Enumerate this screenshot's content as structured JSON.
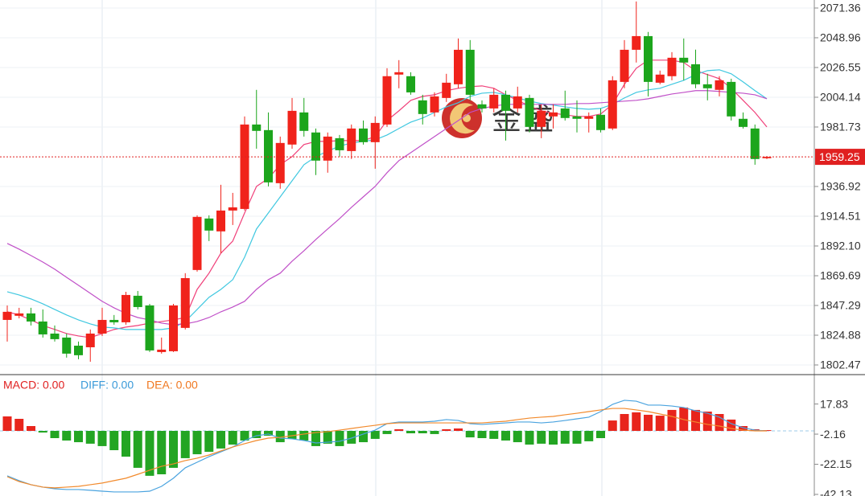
{
  "chart_data": [
    {
      "type": "candlestick",
      "ylim": [
        1795.8,
        2077.4
      ],
      "yticks": [
        2071.36,
        2048.96,
        2026.55,
        2004.14,
        1981.73,
        1936.92,
        1914.51,
        {
          "value": 1892.1,
          "label": "1892.10"
        },
        1869.69,
        1847.29,
        1824.88,
        1802.47
      ],
      "grid": true,
      "up_color": "#f0231b",
      "down_color": "#1ca51c",
      "open": [
        1836.4,
        1839.5,
        1841.3,
        1835.2,
        1826.1,
        1823.1,
        1817.0,
        1815.8,
        1826.1,
        1836.4,
        1834.6,
        1854.6,
        1847.3,
        1812.2,
        1812.8,
        1830.4,
        1874.0,
        1912.8,
        1903.1,
        1918.8,
        1920.0,
        1983.6,
        1979.4,
        1939.4,
        1968.5,
        1992.7,
        1977.6,
        1956.4,
        1973.3,
        1963.6,
        1980.6,
        1970.3,
        1983.6,
        2021.2,
        2020.0,
        2001.8,
        1992.7,
        2003.6,
        2013.9,
        2039.9,
        1998.8,
        1995.7,
        2006.0,
        1995.7,
        2003.6,
        1981.8,
        1989.7,
        1995.7,
        1989.7,
        1987.9,
        1990.9,
        1980.6,
        2015.7,
        2039.9,
        2050.2,
        2015.1,
        2020.0,
        2033.9,
        2029.0,
        2013.9,
        2009.7,
        2015.7,
        1987.9,
        1980.6,
        1958.2
      ],
      "high": [
        1847.3,
        1845.5,
        1845.5,
        1844.3,
        1832.2,
        1826.1,
        1820.1,
        1829.2,
        1845.5,
        1840.1,
        1857.6,
        1858.2,
        1848.5,
        1823.1,
        1848.5,
        1871.6,
        1915.2,
        1915.2,
        1938.2,
        1932.1,
        1989.7,
        2009.7,
        1992.7,
        1974.5,
        2003.6,
        2003.6,
        1980.6,
        1977.6,
        1975.7,
        1983.6,
        1986.6,
        1989.7,
        2026.0,
        2032.1,
        2023.0,
        2006.0,
        2007.8,
        2021.8,
        2048.4,
        2047.2,
        2001.8,
        2010.9,
        2009.1,
        2012.1,
        2006.0,
        1998.8,
        1998.8,
        2009.1,
        2001.8,
        1992.7,
        1995.7,
        2020.0,
        2047.2,
        2076.3,
        2053.3,
        2024.2,
        2038.1,
        2048.4,
        2040.0,
        2021.8,
        2020.0,
        2018.1,
        1992.7,
        1983.6,
        1959.8
      ],
      "low": [
        1820.1,
        1837.6,
        1832.2,
        1823.1,
        1820.1,
        1808.0,
        1806.8,
        1804.9,
        1824.3,
        1832.8,
        1832.8,
        1844.3,
        1812.2,
        1811.0,
        1812.2,
        1829.2,
        1872.8,
        1895.8,
        1886.7,
        1907.9,
        1918.8,
        1965.4,
        1937.0,
        1935.2,
        1965.4,
        1974.5,
        1945.5,
        1947.3,
        1959.4,
        1957.6,
        1968.5,
        1950.3,
        1981.8,
        2010.9,
        2006.0,
        1983.6,
        1989.7,
        2000.6,
        2010.9,
        2001.8,
        1992.7,
        1992.7,
        1971.5,
        1992.7,
        1977.6,
        1973.3,
        1980.6,
        1986.6,
        1977.6,
        1977.6,
        1977.6,
        1979.4,
        2010.9,
        2030.3,
        2004.8,
        2013.9,
        2016.9,
        2016.9,
        2010.9,
        2001.8,
        2004.8,
        1986.6,
        1980.6,
        1953.3,
        1957.6
      ],
      "close": [
        1842.5,
        1841.3,
        1835.2,
        1825.5,
        1821.9,
        1811.0,
        1809.8,
        1826.1,
        1836.4,
        1834.6,
        1855.2,
        1846.1,
        1813.4,
        1814.0,
        1847.3,
        1867.9,
        1914.0,
        1903.7,
        1918.8,
        1921.2,
        1983.6,
        1978.8,
        1940.0,
        1969.7,
        1993.9,
        1978.8,
        1956.4,
        1974.5,
        1964.2,
        1980.6,
        1970.3,
        1984.8,
        2020.0,
        2023.0,
        2007.8,
        1991.5,
        2004.8,
        2015.1,
        2039.9,
        2006.0,
        1995.7,
        2006.0,
        1993.9,
        2004.8,
        1981.8,
        1993.9,
        1992.7,
        1988.5,
        1987.9,
        1989.7,
        1979.4,
        2016.9,
        2039.9,
        2050.2,
        2015.7,
        2021.2,
        2033.9,
        2030.3,
        2013.9,
        2010.9,
        2016.9,
        1989.7,
        1981.8,
        1957.6,
        1959.25
      ],
      "overlays": [
        {
          "color": "#f0407a",
          "values": [
            1842.5,
            1840.1,
            1836.4,
            1832.2,
            1829.2,
            1826.1,
            1824.3,
            1823.1,
            1826.1,
            1829.2,
            1831.0,
            1832.2,
            1834.0,
            1835.2,
            1836.4,
            1838.2,
            1859.4,
            1871.6,
            1886.7,
            1895.8,
            1917.0,
            1937.0,
            1943.0,
            1953.3,
            1959.4,
            1968.5,
            1970.9,
            1970.9,
            1971.5,
            1971.5,
            1971.5,
            1974.5,
            1986.6,
            1993.9,
            2001.8,
            2004.8,
            2006.0,
            2009.1,
            2010.9,
            2012.1,
            2012.7,
            2010.9,
            2006.0,
            2001.8,
            1997.5,
            1993.9,
            1992.1,
            1990.9,
            1989.7,
            1989.7,
            1991.5,
            1998.8,
            2013.9,
            2026.0,
            2032.1,
            2032.1,
            2032.1,
            2030.3,
            2024.2,
            2021.2,
            2018.1,
            2010.9,
            2001.8,
            1992.7,
            1981.8
          ]
        },
        {
          "color": "#40c8e0",
          "values": [
            1857.6,
            1855.2,
            1852.2,
            1848.5,
            1844.3,
            1840.1,
            1836.4,
            1833.4,
            1831.0,
            1830.4,
            1829.2,
            1829.2,
            1829.2,
            1829.2,
            1830.4,
            1835.2,
            1844.3,
            1853.4,
            1859.4,
            1866.7,
            1883.7,
            1904.9,
            1917.0,
            1929.1,
            1941.2,
            1953.3,
            1959.4,
            1963.6,
            1967.3,
            1969.7,
            1970.9,
            1972.1,
            1975.7,
            1980.6,
            1985.4,
            1988.5,
            1992.7,
            1996.9,
            2000.0,
            2004.8,
            2007.2,
            2007.8,
            2006.0,
            2003.6,
            2001.2,
            1999.4,
            1998.2,
            1996.9,
            1995.7,
            1995.1,
            1995.7,
            1998.8,
            2003.6,
            2007.8,
            2009.7,
            2010.9,
            2013.9,
            2016.9,
            2021.2,
            2024.2,
            2024.8,
            2021.8,
            2015.7,
            2009.1,
            2003.0
          ]
        },
        {
          "color": "#c050c8",
          "values": [
            1894.0,
            1889.7,
            1884.9,
            1880.0,
            1874.6,
            1868.5,
            1862.5,
            1856.4,
            1850.4,
            1845.5,
            1841.3,
            1838.2,
            1836.4,
            1834.0,
            1832.8,
            1833.4,
            1835.2,
            1838.2,
            1842.5,
            1846.1,
            1850.4,
            1859.4,
            1866.7,
            1871.6,
            1880.6,
            1888.5,
            1897.0,
            1904.9,
            1912.7,
            1921.2,
            1929.1,
            1937.0,
            1947.3,
            1956.4,
            1962.4,
            1968.5,
            1974.5,
            1980.6,
            1986.6,
            1992.7,
            1995.7,
            1997.5,
            1998.8,
            1998.8,
            1998.8,
            1998.8,
            1998.8,
            1998.8,
            1999.4,
            1999.4,
            2000.0,
            2000.6,
            2001.2,
            2001.8,
            2003.0,
            2004.8,
            2006.6,
            2007.8,
            2009.1,
            2009.1,
            2008.5,
            2007.8,
            2007.2,
            2006.0,
            2003.0
          ]
        }
      ],
      "last_price": 1959.25,
      "last_price_color": "#e02020"
    },
    {
      "type": "macd",
      "ylim": [
        -43.2,
        36.8
      ],
      "yticks": [
        17.83,
        -2.16,
        -22.15,
        -42.13
      ],
      "grid": false,
      "legend": [
        {
          "text": "MACD: 0.00",
          "color": "#e02020"
        },
        {
          "text": "DIFF: 0.00",
          "color": "#3a9ad9"
        },
        {
          "text": "DEA: 0.00",
          "color": "#f07820"
        }
      ],
      "up_color": "#e8251c",
      "down_color": "#23a523",
      "histogram": [
        9.6,
        8.0,
        3.2,
        -1.1,
        -4.8,
        -6.4,
        -7.5,
        -8.5,
        -10.1,
        -12.8,
        -17.1,
        -24.5,
        -29.8,
        -28.8,
        -24.5,
        -18.1,
        -15.5,
        -13.9,
        -11.7,
        -9.1,
        -6.4,
        -4.8,
        -3.2,
        -7.5,
        -5.3,
        -6.4,
        -10.1,
        -8.5,
        -10.1,
        -8.5,
        -7.5,
        -5.3,
        -2.1,
        1.1,
        -1.6,
        -1.6,
        -2.1,
        1.1,
        1.6,
        -4.3,
        -4.8,
        -5.3,
        -6.4,
        -7.5,
        -9.1,
        -8.5,
        -9.1,
        -8.5,
        -8.5,
        -6.9,
        -4.8,
        6.9,
        11.2,
        12.3,
        10.7,
        10.1,
        13.9,
        15.5,
        13.9,
        12.8,
        11.2,
        7.5,
        3.2,
        1.1,
        0.5
      ],
      "series": [
        {
          "color": "#4aa3df",
          "values": [
            -29.8,
            -33.0,
            -35.7,
            -37.3,
            -38.4,
            -38.9,
            -38.9,
            -39.4,
            -40.0,
            -40.5,
            -40.5,
            -40.5,
            -40.0,
            -36.8,
            -31.4,
            -24.5,
            -20.8,
            -17.1,
            -13.9,
            -10.7,
            -6.4,
            -3.2,
            -2.1,
            -4.8,
            -5.3,
            -6.4,
            -8.0,
            -7.5,
            -6.9,
            -4.8,
            -2.1,
            0.5,
            4.8,
            5.9,
            5.9,
            5.9,
            6.4,
            7.5,
            6.9,
            4.8,
            4.3,
            4.8,
            5.3,
            5.9,
            5.9,
            5.3,
            5.9,
            6.9,
            8.0,
            9.1,
            12.8,
            17.6,
            20.3,
            19.7,
            17.1,
            17.1,
            16.5,
            15.5,
            13.3,
            11.7,
            9.1,
            4.8,
            2.1,
            0.5,
            0
          ]
        },
        {
          "color": "#f28a2c",
          "values": [
            -30.4,
            -33.6,
            -35.7,
            -37.3,
            -37.8,
            -37.3,
            -36.8,
            -35.7,
            -34.6,
            -33.0,
            -31.4,
            -28.8,
            -26.1,
            -23.5,
            -21.9,
            -19.7,
            -18.1,
            -16.0,
            -13.3,
            -10.7,
            -8.5,
            -6.4,
            -4.8,
            -4.3,
            -3.2,
            -2.1,
            -1.1,
            -0.5,
            0.5,
            1.6,
            2.7,
            3.7,
            4.8,
            5.3,
            5.3,
            5.3,
            5.3,
            5.3,
            5.3,
            5.3,
            5.3,
            5.9,
            6.4,
            7.5,
            8.5,
            9.1,
            9.6,
            10.7,
            11.7,
            12.8,
            13.9,
            14.9,
            14.9,
            13.9,
            12.8,
            11.2,
            9.6,
            7.5,
            5.9,
            4.3,
            3.2,
            1.6,
            0.5,
            0,
            0
          ]
        }
      ]
    }
  ],
  "watermark": {
    "text": "金盛"
  }
}
